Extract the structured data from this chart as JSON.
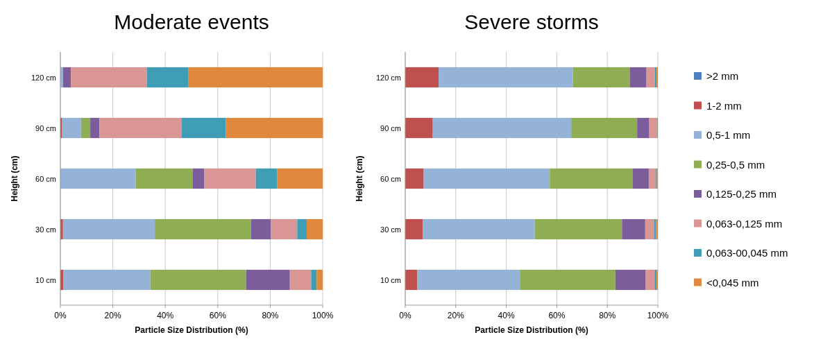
{
  "chart_data": [
    {
      "type": "bar",
      "orientation": "horizontal",
      "stacked": true,
      "title": "Moderate events",
      "xlabel": "Particle Size Distribution (%)",
      "ylabel": "Height (cm)",
      "categories": [
        "120 cm",
        "90 cm",
        "60 cm",
        "30 cm",
        "10 cm"
      ],
      "xlim": [
        0,
        100
      ],
      "xticks": [
        {
          "value": 0,
          "label": "0%"
        },
        {
          "value": 20,
          "label": "20%"
        },
        {
          "value": 40,
          "label": "40%"
        },
        {
          "value": 60,
          "label": "60%"
        },
        {
          "value": 80,
          "label": "80%"
        },
        {
          "value": 100,
          "label": "100%"
        }
      ],
      "grid": "x",
      "series": [
        {
          "color": "#4f81bd",
          "values": [
            0,
            0,
            0,
            0,
            0
          ]
        },
        {
          "color": "#c0504d",
          "values": [
            0,
            0.7,
            0,
            1,
            1.2
          ]
        },
        {
          "color": "#95b3d7",
          "values": [
            1,
            7.2,
            28.8,
            35,
            33.1
          ]
        },
        {
          "color": "#8fae53",
          "values": [
            0,
            3.5,
            21.7,
            36.7,
            36.5
          ]
        },
        {
          "color": "#7a5d9a",
          "values": [
            3,
            3.5,
            4.4,
            7.6,
            16.7
          ]
        },
        {
          "color": "#d99694",
          "values": [
            29,
            31.4,
            19.6,
            10,
            8.1
          ]
        },
        {
          "color": "#3f9db5",
          "values": [
            15.7,
            16.8,
            8.1,
            3.6,
            2.1
          ]
        },
        {
          "color": "#e0883e",
          "values": [
            51.3,
            37,
            17.4,
            6.1,
            2.3
          ]
        }
      ]
    },
    {
      "type": "bar",
      "orientation": "horizontal",
      "stacked": true,
      "title": "Severe storms",
      "xlabel": "Particle Size Distribution (%)",
      "ylabel": "Height (cm)",
      "categories": [
        "120 cm",
        "90 cm",
        "60 cm",
        "30 cm",
        "10 cm"
      ],
      "xlim": [
        0,
        100
      ],
      "xticks": [
        {
          "value": 0,
          "label": "0%"
        },
        {
          "value": 20,
          "label": "20%"
        },
        {
          "value": 40,
          "label": "40%"
        },
        {
          "value": 60,
          "label": "60%"
        },
        {
          "value": 80,
          "label": "80%"
        },
        {
          "value": 100,
          "label": "100%"
        }
      ],
      "grid": "x",
      "legend": "right",
      "series": [
        {
          "name": ">2 mm",
          "color": "#4f81bd",
          "values": [
            0,
            0,
            0,
            0,
            0
          ]
        },
        {
          "name": "1-2 mm",
          "color": "#c0504d",
          "values": [
            13.2,
            10.9,
            7.3,
            7,
            4.7
          ]
        },
        {
          "name": "0,5-1 mm",
          "color": "#95b3d7",
          "values": [
            53.2,
            54.8,
            49.9,
            44.3,
            40.7
          ]
        },
        {
          "name": "0,25-0,5 mm",
          "color": "#8fae53",
          "values": [
            22.6,
            26.1,
            32.9,
            34.5,
            37.8
          ]
        },
        {
          "name": "0,125-0,25 mm",
          "color": "#7a5d9a",
          "values": [
            6.5,
            4.8,
            6.3,
            9.2,
            12
          ]
        },
        {
          "name": "0,063-0,125 mm",
          "color": "#d99694",
          "values": [
            3.3,
            2.7,
            2.7,
            3.5,
            3.5
          ]
        },
        {
          "name": "0,063-00,045 mm",
          "color": "#3f9db5",
          "values": [
            0.7,
            0.3,
            0.5,
            0.8,
            0.8
          ]
        },
        {
          "name": "<0,045 mm",
          "color": "#e0883e",
          "values": [
            0.5,
            0.4,
            0.4,
            0.7,
            0.5
          ]
        }
      ]
    }
  ]
}
